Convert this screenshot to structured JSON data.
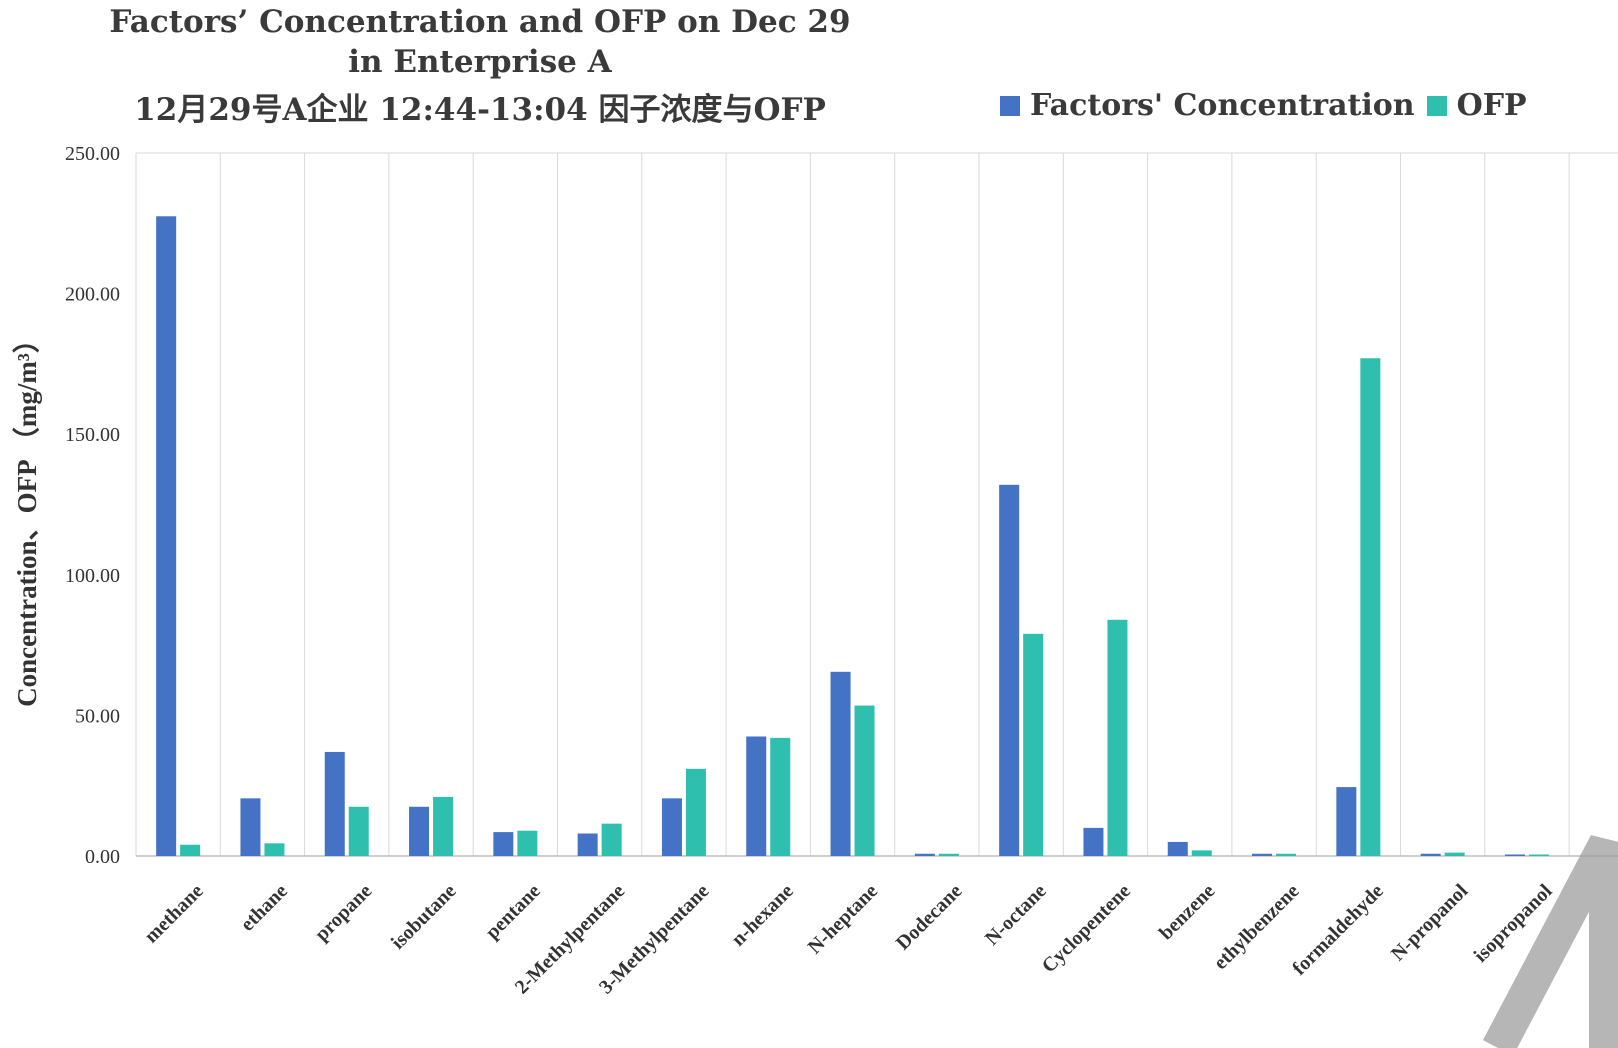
{
  "chart_data": {
    "type": "bar",
    "title_lines": [
      "Factors’ Concentration and OFP on Dec 29",
      "in Enterprise A",
      "12月29号A企业 12:44-13:04 因子浓度与OFP"
    ],
    "ylabel": "Concentration、OFP （mg/m³）",
    "xlabel": "",
    "ylim": [
      0,
      250
    ],
    "yticks": [
      0,
      50,
      100,
      150,
      200,
      250
    ],
    "ytick_labels": [
      "0.00",
      "50.00",
      "100.00",
      "150.00",
      "200.00",
      "250.00"
    ],
    "grid": "vertical category separators",
    "legend_position": "top-right",
    "categories": [
      "methane",
      "ethane",
      "propane",
      "isobutane",
      "pentane",
      "2-Methylpentane",
      "3-Methylpentane",
      "n-hexane",
      "N-heptane",
      "Dodecane",
      "N-octane",
      "Cyclopentene",
      "benzene",
      "ethylbenzene",
      "formaldehyde",
      "N-propanol",
      "isopropanol"
    ],
    "series": [
      {
        "name": "Factors' Concentration",
        "color": "#4472C4",
        "values": [
          227.5,
          20.5,
          37.0,
          17.5,
          8.5,
          8.0,
          20.5,
          42.5,
          65.5,
          0.8,
          132.0,
          10.0,
          5.0,
          0.8,
          24.5,
          0.8,
          0.5
        ]
      },
      {
        "name": "OFP",
        "color": "#2EBFAE",
        "values": [
          4.0,
          4.5,
          17.5,
          21.0,
          9.0,
          11.5,
          31.0,
          42.0,
          53.5,
          0.8,
          79.0,
          84.0,
          2.0,
          0.8,
          177.0,
          1.2,
          0.5
        ]
      }
    ]
  },
  "watermark": {
    "color": "#9e9e9e"
  }
}
